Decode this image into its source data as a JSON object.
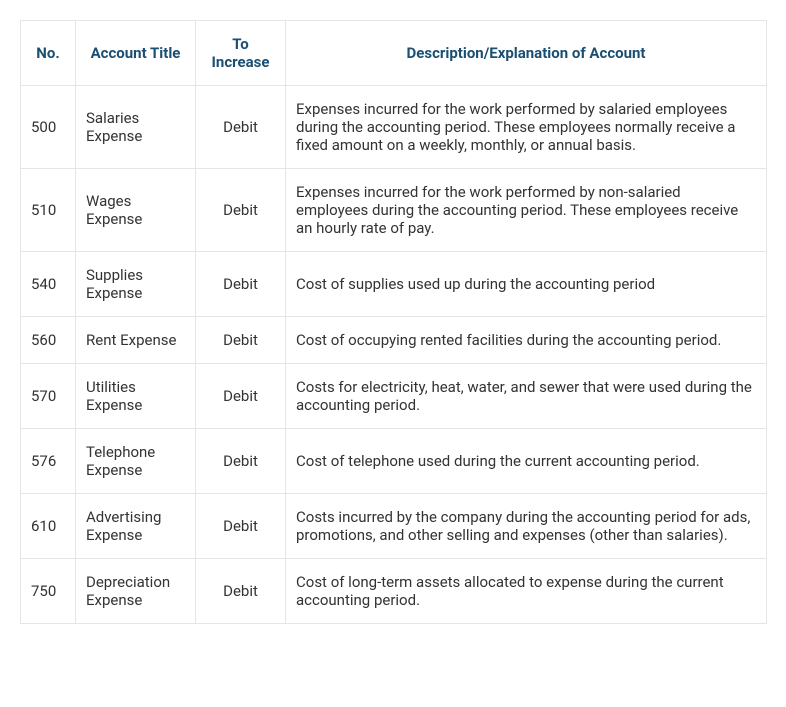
{
  "table": {
    "header_color": "#1b4f72",
    "border_color": "#e5e5e5",
    "text_color": "#333333",
    "columns": [
      {
        "label": "No.",
        "align": "center"
      },
      {
        "label": "Account Title",
        "align": "left"
      },
      {
        "label": "To Increase",
        "align": "center"
      },
      {
        "label": "Description/Explanation of Account",
        "align": "left"
      }
    ],
    "rows": [
      {
        "no": "500",
        "title": "Salaries Expense",
        "increase": "Debit",
        "desc": "Expenses incurred for the work performed by salaried employees during the accounting period. These employees normally receive a fixed amount on a weekly, monthly, or annual basis."
      },
      {
        "no": "510",
        "title": "Wages Expense",
        "increase": "Debit",
        "desc": "Expenses incurred for the work performed by non-salaried employees during the accounting period. These employees receive an hourly rate of pay."
      },
      {
        "no": "540",
        "title": "Supplies Expense",
        "increase": "Debit",
        "desc": "Cost of supplies used up during the accounting period"
      },
      {
        "no": "560",
        "title": "Rent Expense",
        "increase": "Debit",
        "desc": "Cost of occupying rented facilities during the accounting period."
      },
      {
        "no": "570",
        "title": "Utilities Expense",
        "increase": "Debit",
        "desc": "Costs for electricity, heat, water, and sewer that were used during the accounting period."
      },
      {
        "no": "576",
        "title": "Telephone Expense",
        "increase": "Debit",
        "desc": "Cost of telephone used during the current accounting period."
      },
      {
        "no": "610",
        "title": "Advertising Expense",
        "increase": "Debit",
        "desc": "Costs incurred by the company during the accounting period for ads, promotions, and other selling and expenses (other than salaries)."
      },
      {
        "no": "750",
        "title": "Depreciation Expense",
        "increase": "Debit",
        "desc": "Cost of long-term assets allocated to expense during the current accounting period."
      }
    ]
  }
}
